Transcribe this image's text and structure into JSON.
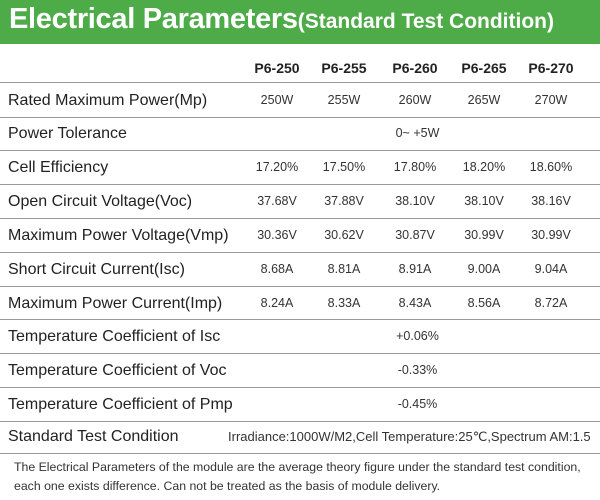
{
  "header": {
    "title": "Electrical Parameters",
    "subtitle": "(Standard Test Condition)"
  },
  "columns": [
    "P6-250",
    "P6-255",
    "P6-260",
    "P6-265",
    "P6-270"
  ],
  "rows": [
    {
      "label": "Rated Maximum Power(Mp)",
      "values": [
        "250W",
        "255W",
        "260W",
        "265W",
        "270W"
      ]
    },
    {
      "label": "Power Tolerance",
      "span": "0~ +5W"
    },
    {
      "label": "Cell Efficiency",
      "values": [
        "17.20%",
        "17.50%",
        "17.80%",
        "18.20%",
        "18.60%"
      ]
    },
    {
      "label": "Open Circuit Voltage(Voc)",
      "values": [
        "37.68V",
        "37.88V",
        "38.10V",
        "38.10V",
        "38.16V"
      ]
    },
    {
      "label": "Maximum Power Voltage(Vmp)",
      "values": [
        "30.36V",
        "30.62V",
        "30.87V",
        "30.99V",
        "30.99V"
      ]
    },
    {
      "label": "Short Circuit Current(Isc)",
      "values": [
        "8.68A",
        "8.81A",
        "8.91A",
        "9.00A",
        "9.04A"
      ]
    },
    {
      "label": "Maximum Power Current(Imp)",
      "values": [
        "8.24A",
        "8.33A",
        "8.43A",
        "8.56A",
        "8.72A"
      ]
    },
    {
      "label": "Temperature Coefficient of Isc",
      "span": "+0.06%"
    },
    {
      "label": "Temperature Coefficient of Voc",
      "span": "-0.33%"
    },
    {
      "label": "Temperature Coefficient of Pmp",
      "span": "-0.45%"
    }
  ],
  "standard_test": {
    "label": "Standard Test Condition",
    "value": "Irradiance:1000W/M2,Cell Temperature:25℃,Spectrum AM:1.5"
  },
  "note": "The Electrical Parameters of the module are the average theory figure under the standard test condition, each one exists difference. Can not be treated as the basis of module delivery.",
  "colors": {
    "banner_green": "#4dab48",
    "rule_gray": "#9a9a9a"
  }
}
